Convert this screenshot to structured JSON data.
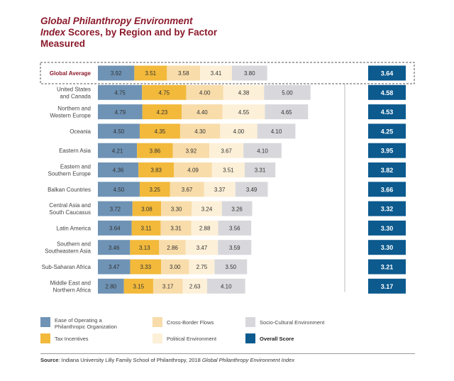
{
  "title": {
    "line1_italic": "Global Philanthropy Environment",
    "line2_italic": "Index",
    "line2_rest": "Scores, by Region and by Factor",
    "line3": "Measured"
  },
  "colors": {
    "ease": "#6f93b5",
    "tax": "#f2b93b",
    "cross": "#f8dcaa",
    "political": "#fdf0d8",
    "socio": "#d8d8dc",
    "overall": "#0c5a8e",
    "title": "#8b1a2b"
  },
  "chart_data": {
    "type": "bar",
    "stacked": true,
    "title": "Global Philanthropy Environment Index Scores, by Region and by Factor Measured",
    "categories": [
      "Global Average",
      "United States and Canada",
      "Northern and Western Europe",
      "Oceania",
      "Eastern Asia",
      "Eastern and Southern Europe",
      "Balkan Countries",
      "Central Asia and South Caucasus",
      "Latin America",
      "Southern and Southeastern Asia",
      "Sub-Saharan Africa",
      "Middle East and Northern Africa"
    ],
    "category_lines": [
      [
        "Global Average"
      ],
      [
        "United States",
        "and Canada"
      ],
      [
        "Northern and",
        "Western Europe"
      ],
      [
        "Oceania"
      ],
      [
        "Eastern Asia"
      ],
      [
        "Eastern and",
        "Southern Europe"
      ],
      [
        "Balkan Countries"
      ],
      [
        "Central Asia and",
        "South Caucasus"
      ],
      [
        "Latin America"
      ],
      [
        "Southern and",
        "Southeastern Asia"
      ],
      [
        "Sub-Saharan Africa"
      ],
      [
        "Middle East and",
        "Northern Africa"
      ]
    ],
    "series": [
      {
        "name": "Ease of Operating a Philanthropic Organization",
        "key": "ease",
        "values": [
          "3.92",
          "4.75",
          "4.79",
          "4.50",
          "4.21",
          "4.36",
          "4.50",
          "3.72",
          "3.64",
          "3.46",
          "3.47",
          "2.80"
        ]
      },
      {
        "name": "Tax Incentives",
        "key": "tax",
        "values": [
          "3.51",
          "4.75",
          "4.23",
          "4.35",
          "3.86",
          "3.83",
          "3.25",
          "3.08",
          "3.11",
          "3.13",
          "3.33",
          "3.15"
        ]
      },
      {
        "name": "Cross-Border Flows",
        "key": "cross",
        "values": [
          "3.58",
          "4.00",
          "4.40",
          "4.30",
          "3.92",
          "4.09",
          "3.67",
          "3.30",
          "3.31",
          "2.86",
          "3.00",
          "3.17"
        ]
      },
      {
        "name": "Political Environment",
        "key": "political",
        "values": [
          "3.41",
          "4.38",
          "4.55",
          "4.00",
          "3.67",
          "3.51",
          "3.37",
          "3.24",
          "2.88",
          "3.47",
          "2.75",
          "2.63"
        ]
      },
      {
        "name": "Socio-Cultural Environment",
        "key": "socio",
        "values": [
          "3.80",
          "5.00",
          "4.65",
          "4.10",
          "4.10",
          "3.31",
          "3.49",
          "3.26",
          "3.56",
          "3.59",
          "3.50",
          "4.10"
        ]
      }
    ],
    "overall_score": {
      "name": "Overall Score",
      "values": [
        "3.64",
        "4.58",
        "4.53",
        "4.25",
        "3.95",
        "3.82",
        "3.66",
        "3.32",
        "3.30",
        "3.30",
        "3.21",
        "3.17"
      ]
    },
    "highlight_category": "Global Average",
    "ylim": [
      0,
      5
    ]
  },
  "legend": [
    {
      "key": "ease",
      "lines": [
        "Ease of Operating a",
        "Philanthropic Organization"
      ],
      "bold": false
    },
    {
      "key": "cross",
      "lines": [
        "Cross-Border Flows"
      ],
      "bold": false
    },
    {
      "key": "socio",
      "lines": [
        "Socio-Cultural Environment"
      ],
      "bold": false
    },
    {
      "key": "tax",
      "lines": [
        "Tax Incentives"
      ],
      "bold": false
    },
    {
      "key": "political",
      "lines": [
        "Political Environment"
      ],
      "bold": false
    },
    {
      "key": "overall",
      "lines": [
        "Overall Score"
      ],
      "bold": true
    }
  ],
  "source": {
    "label": "Source",
    "text": ": Indiana University Lilly Family School of Philanthropy, 2018 ",
    "title": "Global Philanthropy Environment Index"
  }
}
